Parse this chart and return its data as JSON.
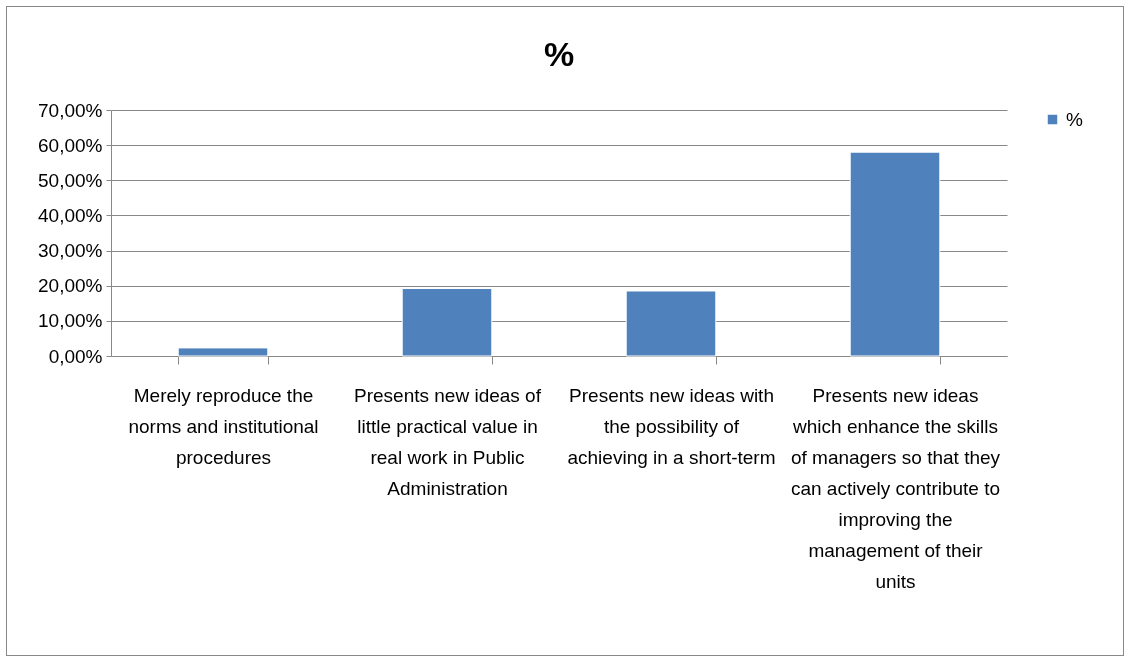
{
  "chart_data": {
    "type": "bar",
    "title": "%",
    "categories": [
      "Merely reproduce the norms and institutional procedures",
      "Presents new ideas of little practical value in real work in Public Administration",
      "Presents new ideas with the possibility of achieving in a short-term",
      "Presents new ideas which enhance the skills of managers so that they can actively contribute to improving the management of their units"
    ],
    "series": [
      {
        "name": "%",
        "color": "#4f81bd",
        "values": [
          2.3,
          19.2,
          18.5,
          58
        ]
      }
    ],
    "ylim": [
      0,
      70
    ],
    "yticks": [
      {
        "value": 0,
        "label": "0,00%"
      },
      {
        "value": 10,
        "label": "10,00%"
      },
      {
        "value": 20,
        "label": "20,00%"
      },
      {
        "value": 30,
        "label": "30,00%"
      },
      {
        "value": 40,
        "label": "40,00%"
      },
      {
        "value": 50,
        "label": "50,00%"
      },
      {
        "value": 60,
        "label": "60,00%"
      },
      {
        "value": 70,
        "label": "70,00%"
      }
    ],
    "grid": "y",
    "legend": "right"
  }
}
